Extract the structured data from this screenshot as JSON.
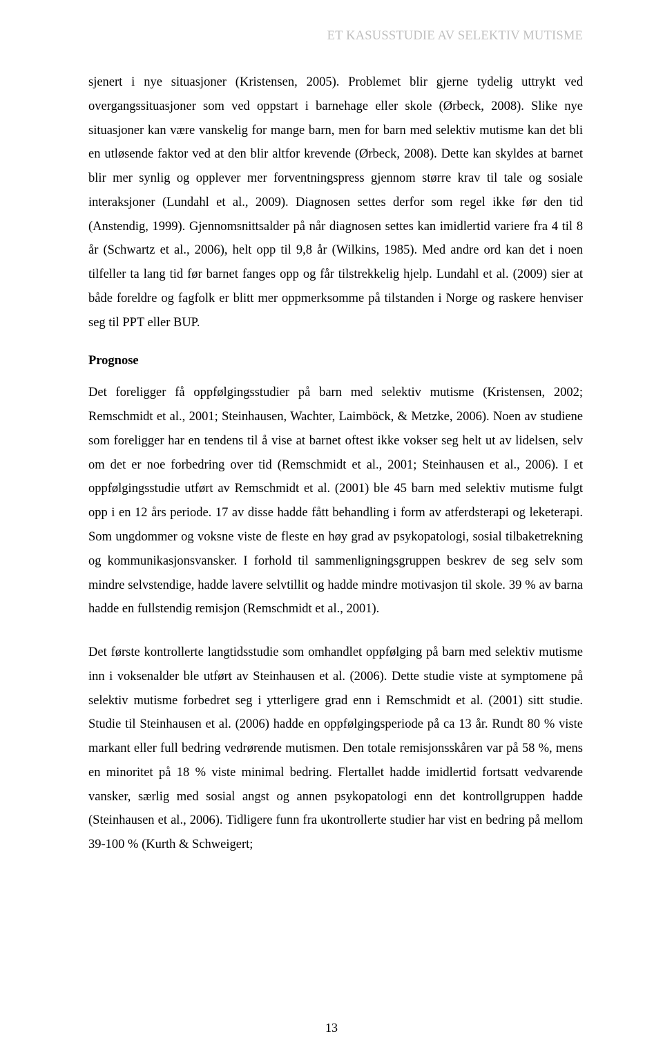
{
  "header": {
    "running_title": "ET KASUSSTUDIE AV SELEKTIV MUTISME"
  },
  "body": {
    "para1": "sjenert i nye situasjoner (Kristensen, 2005). Problemet blir gjerne tydelig uttrykt ved overgangssituasjoner som ved oppstart i barnehage eller skole (Ørbeck, 2008). Slike nye situasjoner kan være vanskelig for mange barn, men for barn med selektiv mutisme kan det bli en utløsende faktor ved at den blir altfor krevende (Ørbeck, 2008). Dette kan skyldes at barnet blir mer synlig og opplever mer forventningspress gjennom større krav til tale og sosiale interaksjoner (Lundahl et al., 2009). Diagnosen settes derfor som regel ikke før den tid (Anstendig, 1999). Gjennomsnittsalder på når diagnosen settes kan imidlertid variere fra 4 til 8 år (Schwartz et al., 2006), helt opp til 9,8 år (Wilkins, 1985). Med andre ord kan det i noen tilfeller ta lang tid før barnet fanges opp og får tilstrekkelig hjelp. Lundahl et al. (2009) sier at både foreldre og fagfolk er blitt mer oppmerksomme på tilstanden i Norge og raskere henviser seg til PPT eller BUP.",
    "heading": "Prognose",
    "para2": "Det foreligger få oppfølgingsstudier på barn med selektiv mutisme (Kristensen, 2002; Remschmidt et al., 2001; Steinhausen, Wachter, Laimböck, & Metzke, 2006). Noen av studiene som foreligger har en tendens til å vise at barnet oftest ikke vokser seg helt ut av lidelsen, selv om det er noe forbedring over tid (Remschmidt et al., 2001; Steinhausen et al., 2006). I et oppfølgingsstudie utført av Remschmidt et al. (2001) ble 45 barn med selektiv mutisme fulgt opp i en 12 års periode. 17 av disse hadde fått behandling i form av atferdsterapi og leketerapi. Som ungdommer og voksne viste de fleste en høy grad av psykopatologi, sosial tilbaketrekning og kommunikasjonsvansker. I forhold til sammenligningsgruppen beskrev de seg selv som mindre selvstendige, hadde lavere selvtillit og hadde mindre motivasjon til skole. 39 % av barna hadde en fullstendig remisjon (Remschmidt et al., 2001).",
    "para3": "Det første kontrollerte langtidsstudie som omhandlet oppfølging på barn med selektiv mutisme inn i voksenalder ble utført av Steinhausen et al. (2006). Dette studie viste at symptomene på selektiv mutisme forbedret seg i ytterligere grad enn i Remschmidt et al. (2001) sitt studie. Studie til Steinhausen et al. (2006) hadde en oppfølgingsperiode på ca 13 år. Rundt 80 % viste markant eller full bedring vedrørende mutismen. Den totale remisjonsskåren var på 58 %, mens en minoritet på 18 % viste minimal bedring. Flertallet hadde imidlertid fortsatt vedvarende vansker, særlig med sosial angst og annen psykopatologi enn det kontrollgruppen hadde (Steinhausen et al., 2006). Tidligere funn fra ukontrollerte studier har vist en bedring på mellom 39-100 % (Kurth & Schweigert;"
  },
  "footer": {
    "page_number": "13"
  }
}
